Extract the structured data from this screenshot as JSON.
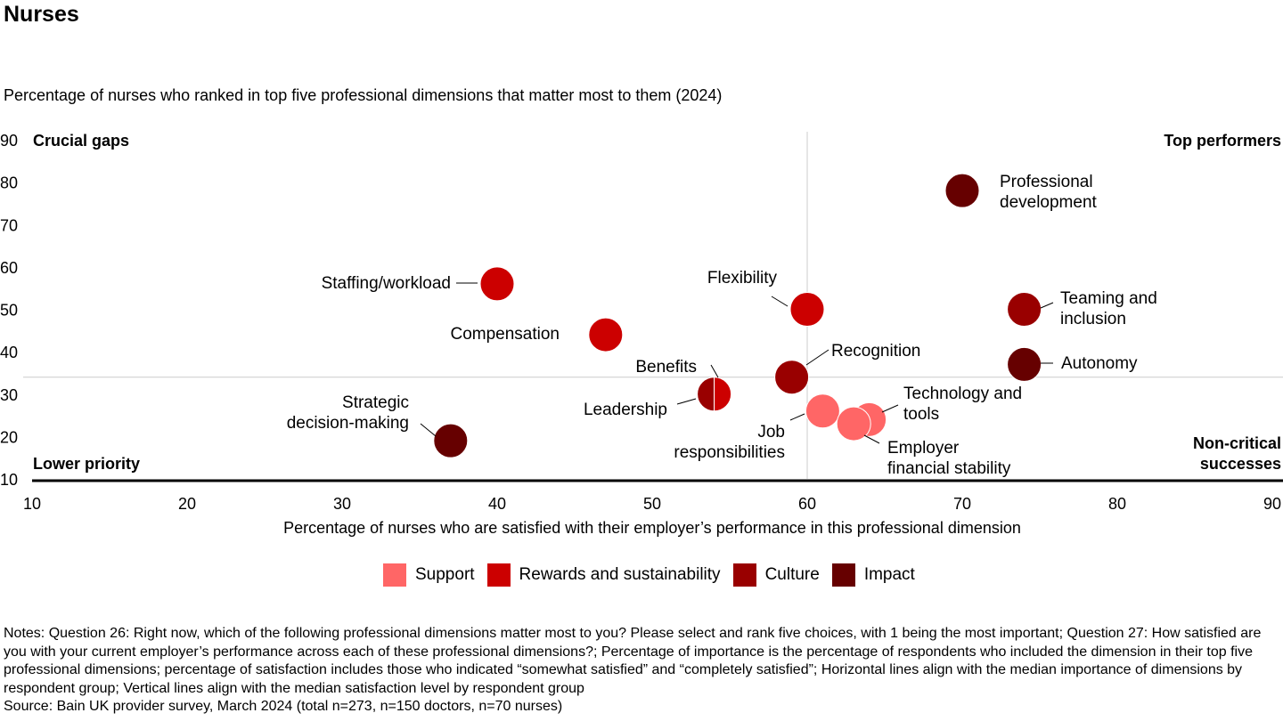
{
  "title": "Nurses",
  "notes": "Notes: Question 26: Right now, which of the following professional dimensions matter most to you? Please select and rank five choices, with 1 being the most important; Question 27: How satisfied are you with your current employer’s performance across each of these professional dimensions?; Percentage of importance is the percentage of respondents who included the dimension in their top five professional dimensions; percentage of satisfaction includes those who indicated “somewhat satisfied” and “completely satisfied”; Horizontal lines align with the median importance of dimensions by respondent group; Vertical lines align with the median satisfaction level by respondent group",
  "source": "Source: Bain UK provider survey, March 2024 (total n=273, n=150 doctors, n=70 nurses)",
  "chart_data": {
    "type": "scatter",
    "ylabel": "Percentage of nurses who ranked in top five professional dimensions that matter most to them (2024)",
    "xlabel": "Percentage of nurses who are satisfied with their employer’s performance in this professional dimension",
    "xlim": [
      10,
      90
    ],
    "ylim": [
      10,
      90
    ],
    "xticks": [
      "10",
      "20",
      "30",
      "40",
      "50",
      "60",
      "70",
      "80",
      "90"
    ],
    "yticks": [
      "10",
      "20",
      "30",
      "40",
      "50",
      "60",
      "70",
      "80",
      "90"
    ],
    "median_x": 60,
    "median_y": 34,
    "quadrants": {
      "top_left": "Crucial gaps",
      "top_right": "Top performers",
      "bottom_left": "Lower priority",
      "bottom_right": "Non-critical successes"
    },
    "categories": [
      {
        "name": "Support",
        "color": "#ff6666"
      },
      {
        "name": "Rewards and sustainability",
        "color": "#cc0000"
      },
      {
        "name": "Culture",
        "color": "#990000"
      },
      {
        "name": "Impact",
        "color": "#660000"
      }
    ],
    "points": [
      {
        "label": "Professional development",
        "x": 70,
        "y": 78,
        "category": "Impact"
      },
      {
        "label": "Staffing/workload",
        "x": 40,
        "y": 56,
        "category": "Rewards and sustainability"
      },
      {
        "label": "Flexibility",
        "x": 60,
        "y": 50,
        "category": "Rewards and sustainability"
      },
      {
        "label": "Teaming and inclusion",
        "x": 74,
        "y": 50,
        "category": "Culture"
      },
      {
        "label": "Compensation",
        "x": 47,
        "y": 44,
        "category": "Rewards and sustainability"
      },
      {
        "label": "Autonomy",
        "x": 74,
        "y": 37,
        "category": "Impact"
      },
      {
        "label": "Recognition",
        "x": 59,
        "y": 34,
        "category": "Culture"
      },
      {
        "label": "Leadership",
        "x": 54,
        "y": 30,
        "category": "Culture"
      },
      {
        "label": "Benefits",
        "x": 54,
        "y": 30,
        "category": "Rewards and sustainability"
      },
      {
        "label": "Technology and tools",
        "x": 64,
        "y": 24,
        "category": "Support"
      },
      {
        "label": "Job responsibilities",
        "x": 61,
        "y": 26,
        "category": "Support"
      },
      {
        "label": "Employer financial stability",
        "x": 63,
        "y": 23,
        "category": "Support"
      },
      {
        "label": "Strategic decision-making",
        "x": 37,
        "y": 19,
        "category": "Impact"
      }
    ]
  }
}
